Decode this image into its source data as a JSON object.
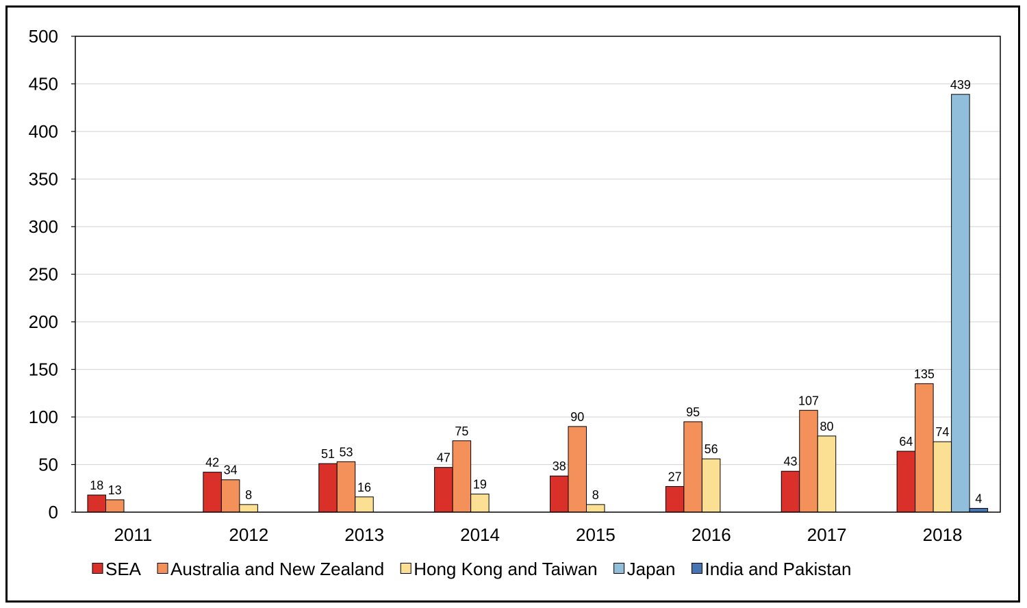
{
  "chart_data": {
    "type": "bar",
    "title": "",
    "xlabel": "",
    "ylabel": "",
    "ylim": [
      0,
      500
    ],
    "yticks": [
      0,
      50,
      100,
      150,
      200,
      250,
      300,
      350,
      400,
      450,
      500
    ],
    "grid": true,
    "legend_position": "bottom",
    "categories": [
      "2011",
      "2012",
      "2013",
      "2014",
      "2015",
      "2016",
      "2017",
      "2018"
    ],
    "series": [
      {
        "name": "SEA",
        "color": "#d9302a",
        "values": [
          18,
          42,
          51,
          47,
          38,
          27,
          43,
          64
        ]
      },
      {
        "name": "Australia and New Zealand",
        "color": "#f4905a",
        "values": [
          13,
          34,
          53,
          75,
          90,
          95,
          107,
          135
        ]
      },
      {
        "name": "Hong Kong and Taiwan",
        "color": "#fbdf92",
        "values": [
          null,
          8,
          16,
          19,
          8,
          56,
          80,
          74
        ]
      },
      {
        "name": "Japan",
        "color": "#91bfdb",
        "values": [
          null,
          null,
          null,
          null,
          null,
          null,
          null,
          439
        ]
      },
      {
        "name": "India and Pakistan",
        "color": "#4575b4",
        "values": [
          null,
          null,
          null,
          null,
          null,
          null,
          null,
          4
        ]
      }
    ]
  }
}
